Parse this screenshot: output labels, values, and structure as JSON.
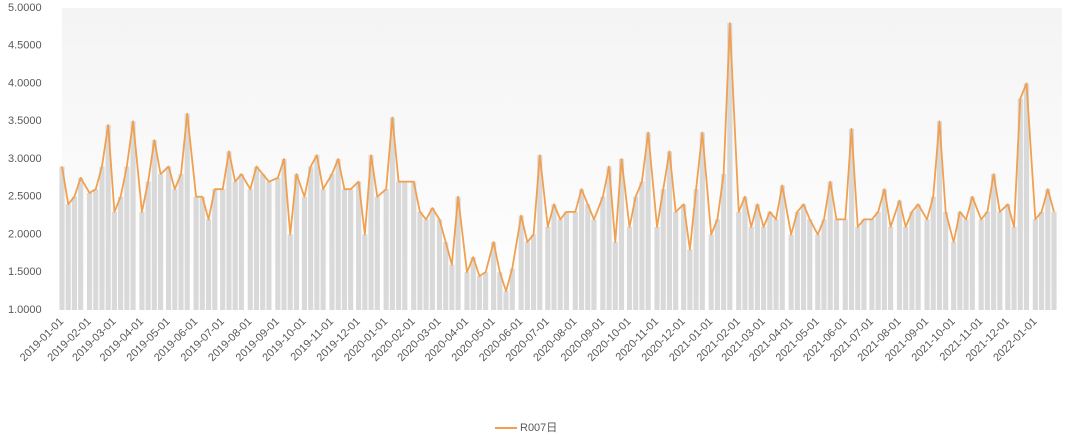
{
  "chart_data": {
    "type": "line",
    "x": [
      "2019-01-01",
      "2019-01-08",
      "2019-01-15",
      "2019-01-22",
      "2019-02-01",
      "2019-02-08",
      "2019-02-15",
      "2019-02-22",
      "2019-03-01",
      "2019-03-08",
      "2019-03-15",
      "2019-03-22",
      "2019-04-01",
      "2019-04-08",
      "2019-04-15",
      "2019-04-22",
      "2019-05-01",
      "2019-05-08",
      "2019-05-15",
      "2019-05-22",
      "2019-06-01",
      "2019-06-08",
      "2019-06-15",
      "2019-06-22",
      "2019-07-01",
      "2019-07-08",
      "2019-07-15",
      "2019-07-22",
      "2019-08-01",
      "2019-08-08",
      "2019-08-15",
      "2019-08-22",
      "2019-09-01",
      "2019-09-08",
      "2019-09-15",
      "2019-09-22",
      "2019-10-01",
      "2019-10-08",
      "2019-10-15",
      "2019-10-22",
      "2019-11-01",
      "2019-11-08",
      "2019-11-15",
      "2019-11-22",
      "2019-12-01",
      "2019-12-08",
      "2019-12-15",
      "2019-12-22",
      "2020-01-01",
      "2020-01-08",
      "2020-01-15",
      "2020-01-22",
      "2020-02-01",
      "2020-02-08",
      "2020-02-15",
      "2020-02-22",
      "2020-03-01",
      "2020-03-08",
      "2020-03-15",
      "2020-03-22",
      "2020-04-01",
      "2020-04-08",
      "2020-04-15",
      "2020-04-22",
      "2020-05-01",
      "2020-05-08",
      "2020-05-15",
      "2020-05-22",
      "2020-06-01",
      "2020-06-08",
      "2020-06-15",
      "2020-06-22",
      "2020-07-01",
      "2020-07-08",
      "2020-07-15",
      "2020-07-22",
      "2020-08-01",
      "2020-08-08",
      "2020-08-15",
      "2020-08-22",
      "2020-09-01",
      "2020-09-08",
      "2020-09-15",
      "2020-09-22",
      "2020-10-01",
      "2020-10-08",
      "2020-10-15",
      "2020-10-22",
      "2020-11-01",
      "2020-11-08",
      "2020-11-15",
      "2020-11-22",
      "2020-12-01",
      "2020-12-08",
      "2020-12-15",
      "2020-12-22",
      "2021-01-01",
      "2021-01-08",
      "2021-01-15",
      "2021-01-22",
      "2021-02-01",
      "2021-02-08",
      "2021-02-15",
      "2021-02-22",
      "2021-03-01",
      "2021-03-08",
      "2021-03-15",
      "2021-03-22",
      "2021-04-01",
      "2021-04-08",
      "2021-04-15",
      "2021-04-22",
      "2021-05-01",
      "2021-05-08",
      "2021-05-15",
      "2021-05-22",
      "2021-06-01",
      "2021-06-08",
      "2021-06-15",
      "2021-06-22",
      "2021-07-01",
      "2021-07-08",
      "2021-07-15",
      "2021-07-22",
      "2021-08-01",
      "2021-08-08",
      "2021-08-15",
      "2021-08-22",
      "2021-09-01",
      "2021-09-08",
      "2021-09-15",
      "2021-09-22",
      "2021-10-01",
      "2021-10-08",
      "2021-10-15",
      "2021-10-22",
      "2021-11-01",
      "2021-11-08",
      "2021-11-15",
      "2021-11-22",
      "2021-12-01",
      "2021-12-08",
      "2021-12-15",
      "2021-12-22",
      "2022-01-01",
      "2022-01-08",
      "2022-01-15",
      "2022-01-22"
    ],
    "series": [
      {
        "name": "R007日",
        "color": "#f0a050",
        "values": [
          2.9,
          2.4,
          2.5,
          2.75,
          2.55,
          2.6,
          2.9,
          3.45,
          2.3,
          2.5,
          2.9,
          3.5,
          2.3,
          2.7,
          3.25,
          2.8,
          2.9,
          2.6,
          2.8,
          3.6,
          2.5,
          2.5,
          2.2,
          2.6,
          2.6,
          3.1,
          2.7,
          2.8,
          2.6,
          2.9,
          2.8,
          2.7,
          2.75,
          3.0,
          2.0,
          2.8,
          2.5,
          2.9,
          3.05,
          2.6,
          2.8,
          3.0,
          2.6,
          2.6,
          2.7,
          2.0,
          3.05,
          2.5,
          2.6,
          3.55,
          2.7,
          2.7,
          2.7,
          2.3,
          2.2,
          2.35,
          2.2,
          1.9,
          1.6,
          2.5,
          1.5,
          1.7,
          1.45,
          1.5,
          1.9,
          1.5,
          1.25,
          1.55,
          2.25,
          1.9,
          2.0,
          3.05,
          2.1,
          2.4,
          2.2,
          2.3,
          2.3,
          2.6,
          2.4,
          2.2,
          2.5,
          2.9,
          1.9,
          3.0,
          2.1,
          2.5,
          2.7,
          3.35,
          2.1,
          2.6,
          3.1,
          2.3,
          2.4,
          1.8,
          2.6,
          3.35,
          2.0,
          2.2,
          2.8,
          4.8,
          2.3,
          2.5,
          2.1,
          2.4,
          2.1,
          2.3,
          2.2,
          2.65,
          2.0,
          2.3,
          2.4,
          2.2,
          2.0,
          2.2,
          2.7,
          2.2,
          2.2,
          3.4,
          2.1,
          2.2,
          2.2,
          2.3,
          2.6,
          2.1,
          2.45,
          2.1,
          2.3,
          2.4,
          2.2,
          2.5,
          3.5,
          2.3,
          1.9,
          2.3,
          2.2,
          2.5,
          2.2,
          2.3,
          2.8,
          2.3,
          2.4,
          2.1,
          3.8,
          4.0,
          2.2,
          2.3,
          2.6,
          2.3
        ]
      }
    ],
    "bar_color": "#d9d9d9",
    "xlim": [
      "2019-01-01",
      "2022-01-31"
    ],
    "xticks": [
      "2019-01-01",
      "2019-02-01",
      "2019-03-01",
      "2019-04-01",
      "2019-05-01",
      "2019-06-01",
      "2019-07-01",
      "2019-08-01",
      "2019-09-01",
      "2019-10-01",
      "2019-11-01",
      "2019-12-01",
      "2020-01-01",
      "2020-02-01",
      "2020-03-01",
      "2020-04-01",
      "2020-05-01",
      "2020-06-01",
      "2020-07-01",
      "2020-08-01",
      "2020-09-01",
      "2020-10-01",
      "2020-11-01",
      "2020-12-01",
      "2021-01-01",
      "2021-02-01",
      "2021-03-01",
      "2021-04-01",
      "2021-05-01",
      "2021-06-01",
      "2021-07-01",
      "2021-08-01",
      "2021-09-01",
      "2021-10-01",
      "2021-11-01",
      "2021-12-01",
      "2022-01-01"
    ],
    "ylim": [
      1,
      5
    ],
    "yticks": [
      {
        "value": 1,
        "label": "1.0000"
      },
      {
        "value": 1.5,
        "label": "1.5000"
      },
      {
        "value": 2,
        "label": "2.0000"
      },
      {
        "value": 2.5,
        "label": "2.5000"
      },
      {
        "value": 3,
        "label": "3.0000"
      },
      {
        "value": 3.5,
        "label": "3.5000"
      },
      {
        "value": 4,
        "label": "4.0000"
      },
      {
        "value": 4.5,
        "label": "4.5000"
      },
      {
        "value": 5,
        "label": "5.0000"
      }
    ],
    "grid": false,
    "legend": "bottom"
  }
}
